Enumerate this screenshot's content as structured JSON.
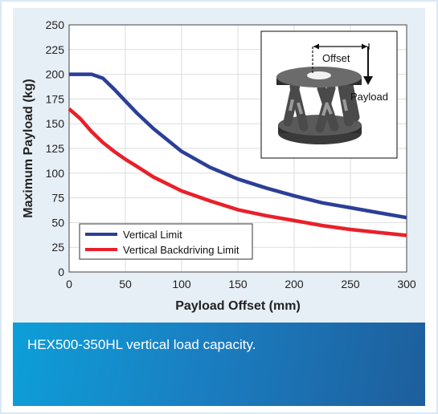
{
  "chart_data": {
    "type": "line",
    "title": "",
    "xlabel": "Payload Offset (mm)",
    "ylabel": "Maximum Payload (kg)",
    "xlim": [
      0,
      300
    ],
    "ylim": [
      0,
      250
    ],
    "x_ticks": [
      0,
      50,
      100,
      150,
      200,
      250,
      300
    ],
    "y_ticks": [
      0,
      25,
      50,
      75,
      100,
      125,
      150,
      175,
      200,
      225,
      250
    ],
    "grid": true,
    "legend_position": "bottom-left",
    "series": [
      {
        "name": "Vertical Limit",
        "color": "#2b3f96",
        "x": [
          0,
          20,
          30,
          40,
          50,
          60,
          75,
          100,
          125,
          150,
          175,
          200,
          225,
          250,
          275,
          300
        ],
        "y": [
          200,
          200,
          196,
          185,
          173,
          161,
          145,
          122,
          106,
          94,
          85,
          77,
          70,
          65,
          60,
          55
        ]
      },
      {
        "name": "Vertical Backdriving Limit",
        "color": "#e8202a",
        "x": [
          0,
          10,
          20,
          30,
          40,
          50,
          60,
          75,
          100,
          125,
          150,
          175,
          200,
          225,
          250,
          275,
          300
        ],
        "y": [
          165,
          155,
          142,
          131,
          122,
          114,
          107,
          96,
          82,
          72,
          63,
          57,
          52,
          47,
          43,
          40,
          37
        ]
      }
    ],
    "inset": {
      "offset_label": "Offset",
      "payload_label": "Payload",
      "image_icon": "hexapod-photo-icon"
    }
  },
  "caption": {
    "text": "HEX500-350HL vertical load capacity."
  }
}
